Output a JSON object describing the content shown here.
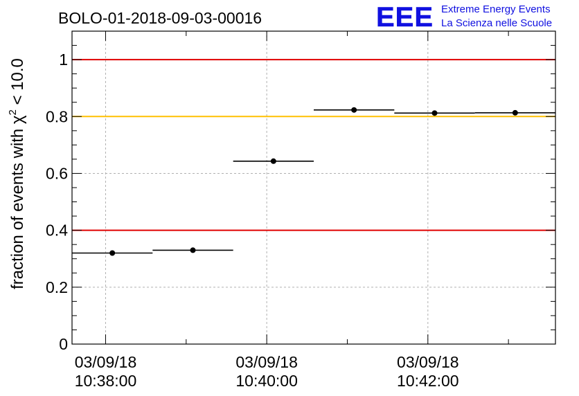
{
  "chart_data": {
    "type": "scatter",
    "title": "BOLO-01-2018-09-03-00016",
    "ylabel_prefix": "fraction of events with ",
    "ylabel_symbol": "χ",
    "ylabel_sup": "2",
    "ylabel_suffix": " < 10.0",
    "logo": {
      "text": "EEE",
      "line1": "Extreme Energy Events",
      "line2": "La Scienza nelle Scuole",
      "color": "#1010e0"
    },
    "ylim": [
      0,
      1.1
    ],
    "yticks": [
      0,
      0.2,
      0.4,
      0.6,
      0.8,
      1
    ],
    "ytick_labels": [
      "0",
      "0.2",
      "0.4",
      "0.6",
      "0.8",
      "1"
    ],
    "xlim": [
      "10:37:35",
      "10:43:35"
    ],
    "xticks": [
      {
        "date": "03/09/18",
        "time": "10:38:00"
      },
      {
        "date": "03/09/18",
        "time": "10:40:00"
      },
      {
        "date": "03/09/18",
        "time": "10:42:00"
      }
    ],
    "grid": true,
    "points": [
      {
        "x": "10:38:05",
        "x_start": "10:37:35",
        "x_end": "10:38:35",
        "y": 0.32
      },
      {
        "x": "10:39:05",
        "x_start": "10:38:35",
        "x_end": "10:39:35",
        "y": 0.33
      },
      {
        "x": "10:40:05",
        "x_start": "10:39:35",
        "x_end": "10:40:35",
        "y": 0.643
      },
      {
        "x": "10:41:05",
        "x_start": "10:40:35",
        "x_end": "10:41:35",
        "y": 0.823
      },
      {
        "x": "10:42:05",
        "x_start": "10:41:35",
        "x_end": "10:42:35",
        "y": 0.812
      },
      {
        "x": "10:43:05",
        "x_start": "10:42:35",
        "x_end": "10:43:35",
        "y": 0.813
      }
    ],
    "reference_lines": [
      {
        "y": 1.0,
        "color": "#e00000"
      },
      {
        "y": 0.8,
        "color": "#ffc000"
      },
      {
        "y": 0.4,
        "color": "#e00000"
      }
    ]
  }
}
